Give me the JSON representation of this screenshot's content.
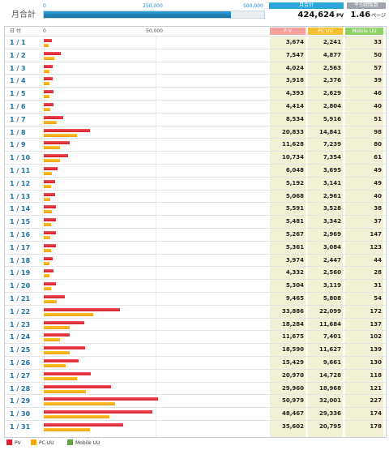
{
  "summary": {
    "monthly_label": "月合計",
    "scale_ticks": [
      "0",
      "250,000",
      "500,000"
    ],
    "scale_max": 500000,
    "total_header": "月合計",
    "total_value": "424,624",
    "total_unit": "PV",
    "avg_header": "平均閲覧数",
    "avg_value": "1.46",
    "avg_unit": "ページ"
  },
  "table": {
    "date_header": "日 付",
    "axis_ticks": [
      "0",
      "50,000"
    ],
    "pv_header": "P V",
    "pc_header": "PC UU",
    "mobile_header": "Mobile UU"
  },
  "legend": {
    "pv": "PV",
    "pc": "PC UU",
    "mobile": "Mobile UU"
  },
  "colors": {
    "pv": "#d9242f",
    "pc": "#f5a80f",
    "mobile": "#5aa83a",
    "accent": "#2aa6d9"
  },
  "chart_data": {
    "type": "bar",
    "orientation": "horizontal",
    "categories": [
      "1 / 1",
      "1 / 2",
      "1 / 3",
      "1 / 4",
      "1 / 5",
      "1 / 6",
      "1 / 7",
      "1 / 8",
      "1 / 9",
      "1 / 10",
      "1 / 11",
      "1 / 12",
      "1 / 13",
      "1 / 14",
      "1 / 15",
      "1 / 16",
      "1 / 17",
      "1 / 18",
      "1 / 19",
      "1 / 20",
      "1 / 21",
      "1 / 22",
      "1 / 23",
      "1 / 24",
      "1 / 25",
      "1 / 26",
      "1 / 27",
      "1 / 28",
      "1 / 29",
      "1 / 30",
      "1 / 31"
    ],
    "series": [
      {
        "name": "PV",
        "values": [
          3674,
          7547,
          4024,
          3918,
          4393,
          4414,
          8534,
          20833,
          11628,
          10734,
          6048,
          5192,
          5068,
          5591,
          5481,
          5267,
          5361,
          3974,
          4332,
          5304,
          9465,
          33886,
          18284,
          11675,
          18590,
          15429,
          20970,
          29960,
          50979,
          48467,
          35602
        ]
      },
      {
        "name": "PC UU",
        "values": [
          2241,
          4877,
          2563,
          2376,
          2629,
          2804,
          5916,
          14841,
          7239,
          7354,
          3695,
          3141,
          2961,
          3528,
          3342,
          2969,
          3084,
          2447,
          2560,
          3119,
          5808,
          22099,
          11684,
          7401,
          11627,
          9661,
          14728,
          18968,
          32001,
          29336,
          20795
        ]
      },
      {
        "name": "Mobile UU",
        "values": [
          33,
          50,
          57,
          39,
          46,
          40,
          51,
          98,
          80,
          61,
          49,
          49,
          40,
          38,
          37,
          147,
          123,
          44,
          28,
          31,
          54,
          172,
          137,
          102,
          139,
          130,
          118,
          121,
          227,
          174,
          178
        ]
      }
    ],
    "display": {
      "pv": [
        "3,674",
        "7,547",
        "4,024",
        "3,918",
        "4,393",
        "4,414",
        "8,534",
        "20,833",
        "11,628",
        "10,734",
        "6,048",
        "5,192",
        "5,068",
        "5,591",
        "5,481",
        "5,267",
        "5,361",
        "3,974",
        "4,332",
        "5,304",
        "9,465",
        "33,886",
        "18,284",
        "11,675",
        "18,590",
        "15,429",
        "20,970",
        "29,960",
        "50,979",
        "48,467",
        "35,602"
      ],
      "pc": [
        "2,241",
        "4,877",
        "2,563",
        "2,376",
        "2,629",
        "2,804",
        "5,916",
        "14,841",
        "7,239",
        "7,354",
        "3,695",
        "3,141",
        "2,961",
        "3,528",
        "3,342",
        "2,969",
        "3,084",
        "2,447",
        "2,560",
        "3,119",
        "5,808",
        "22,099",
        "11,684",
        "7,401",
        "11,627",
        "9,661",
        "14,728",
        "18,968",
        "32,001",
        "29,336",
        "20,795"
      ],
      "mobile": [
        "33",
        "50",
        "57",
        "39",
        "46",
        "40",
        "51",
        "98",
        "80",
        "61",
        "49",
        "49",
        "40",
        "38",
        "37",
        "147",
        "123",
        "44",
        "28",
        "31",
        "54",
        "172",
        "137",
        "102",
        "139",
        "130",
        "118",
        "121",
        "227",
        "174",
        "178"
      ]
    },
    "xlim": [
      0,
      100000
    ],
    "legend_position": "bottom-left",
    "grid": true
  }
}
